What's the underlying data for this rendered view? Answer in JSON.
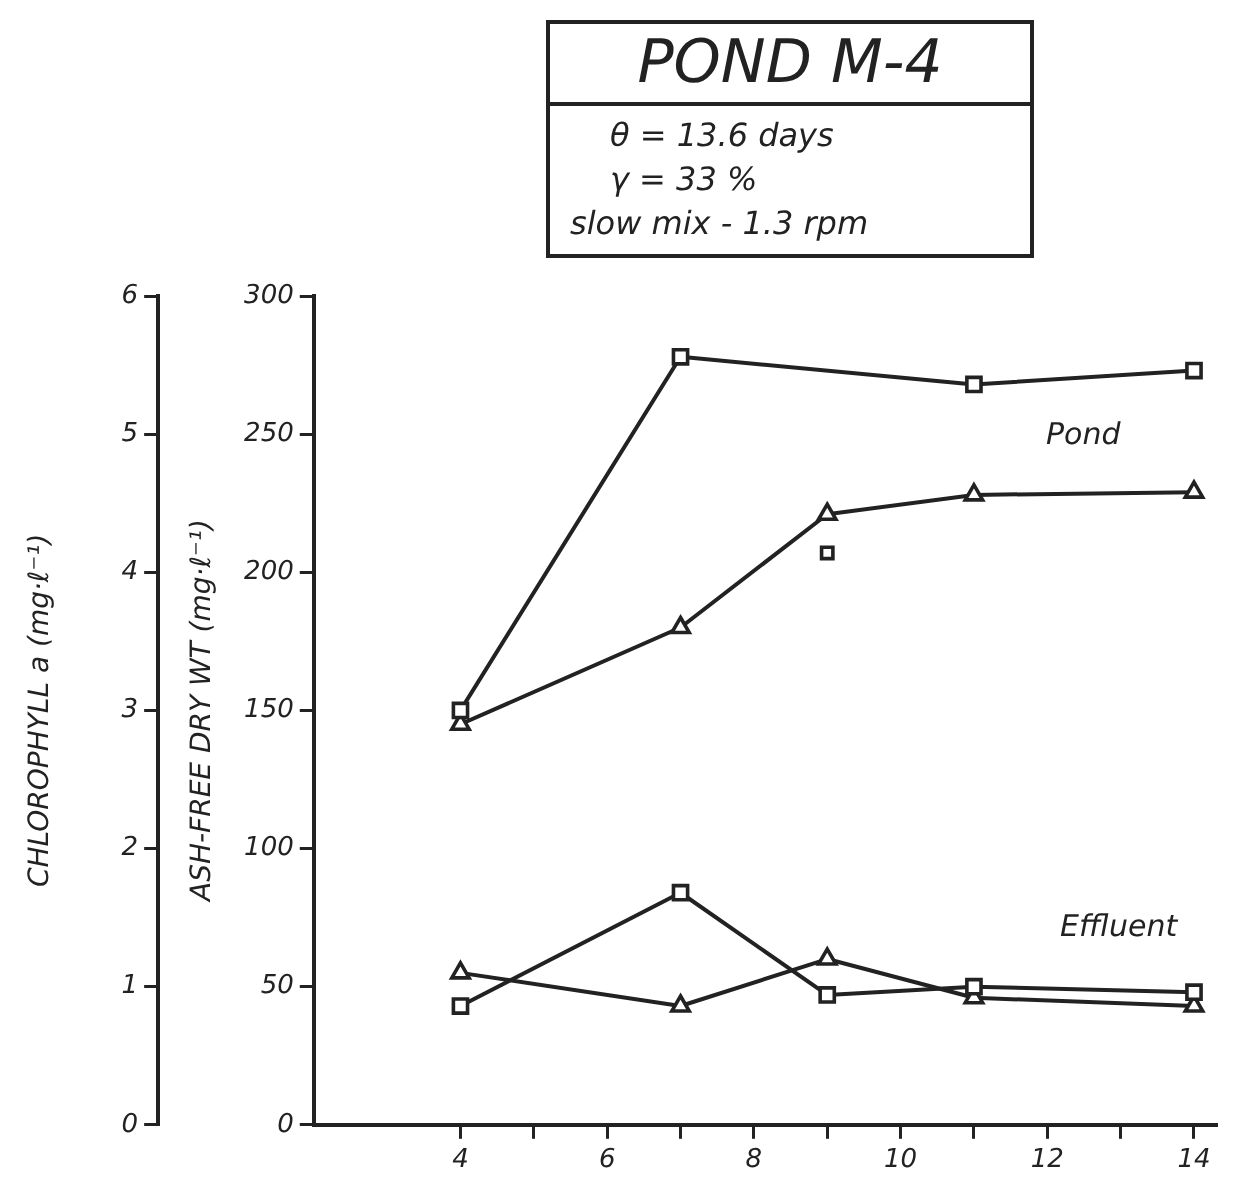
{
  "chart_data": {
    "type": "line",
    "title": "POND M-4",
    "annotations": [
      "θ = 13.6 days",
      "γ = 33 %",
      "slow mix - 1.3 rpm",
      "Pond",
      "Effluent"
    ],
    "xlim": [
      2,
      14.3
    ],
    "xticks": [
      4,
      {
        "value": 5,
        "label": null
      },
      6,
      {
        "value": 7,
        "label": null
      },
      8,
      {
        "value": 9,
        "label": null
      },
      10,
      {
        "value": 11,
        "label": null
      },
      12,
      {
        "value": 13,
        "label": null
      },
      14
    ],
    "y2lim": [
      0,
      300
    ],
    "y2ticks": [
      0,
      50,
      100,
      150,
      200,
      250,
      300
    ],
    "y2label": "ASH-FREE DRY WT (mg·ℓ⁻¹)",
    "ylim": [
      0,
      6
    ],
    "yticks": [
      0,
      1,
      2,
      3,
      4,
      5,
      6
    ],
    "ylabel": "CHLOROPHYLL a (mg·ℓ⁻¹)",
    "grid": false,
    "legend": false,
    "line_style": "solid",
    "series": [
      {
        "color": "#222222",
        "marker": "square",
        "axis": "y2",
        "x": [
          4,
          7,
          11,
          14
        ],
        "values": [
          150,
          278,
          268,
          273
        ]
      },
      {
        "color": "#222222",
        "marker": "square",
        "axis": "y2",
        "type": "scatter",
        "x": [
          9
        ],
        "values": [
          207
        ]
      },
      {
        "color": "#222222",
        "marker": "triangle",
        "axis": "y2",
        "x": [
          4,
          7,
          9,
          11,
          14
        ],
        "values": [
          145,
          180,
          221,
          228,
          229
        ]
      },
      {
        "color": "#222222",
        "marker": "square",
        "axis": "y2",
        "x": [
          4,
          7,
          9,
          11,
          14
        ],
        "values": [
          43,
          84,
          47,
          50,
          48
        ]
      },
      {
        "color": "#222222",
        "marker": "triangle",
        "axis": "y2",
        "x": [
          4,
          7,
          9,
          11,
          14
        ],
        "values": [
          55,
          43,
          60,
          46,
          43
        ]
      }
    ]
  }
}
